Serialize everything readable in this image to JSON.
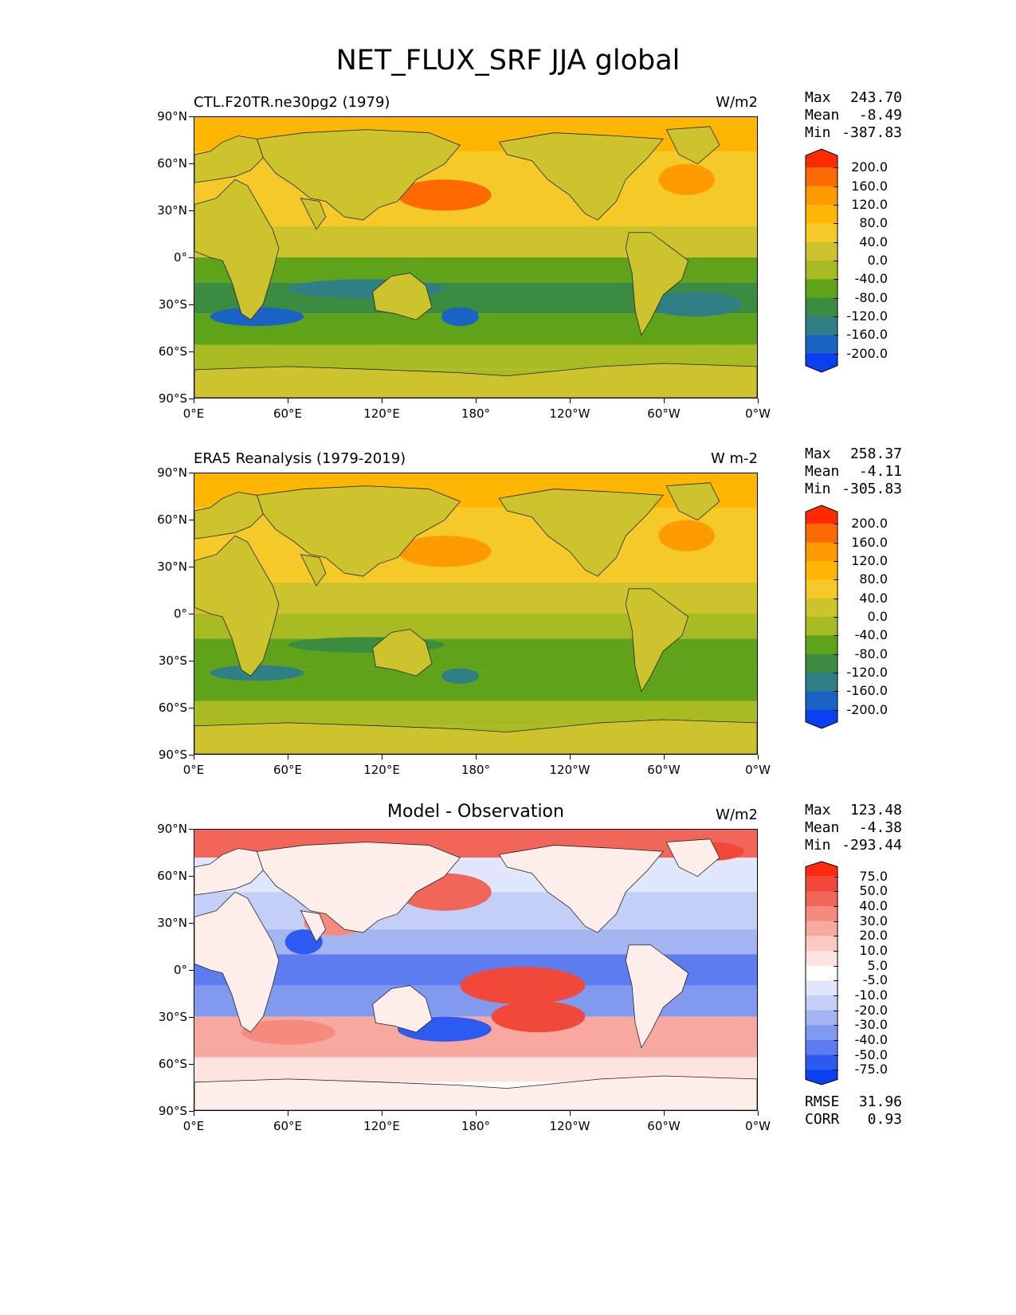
{
  "title": "NET_FLUX_SRF JJA global",
  "y_ticks": [
    "90°N",
    "60°N",
    "30°N",
    "0°",
    "30°S",
    "60°S",
    "90°S"
  ],
  "x_ticks": [
    "0°E",
    "60°E",
    "120°E",
    "180°",
    "120°W",
    "60°W",
    "0°W"
  ],
  "panels": [
    {
      "left_title": "CTL.F20TR.ne30pg2 (1979)",
      "center_title": "",
      "units": "W/m2",
      "stats": {
        "max_label": "Max",
        "max": "243.70",
        "mean_label": "Mean",
        "mean": "-8.49",
        "min_label": "Min",
        "min": "-387.83"
      },
      "colorbar": {
        "labels": [
          "200.0",
          "160.0",
          "120.0",
          "80.0",
          "40.0",
          "0.0",
          "-40.0",
          "-80.0",
          "-120.0",
          "-160.0",
          "-200.0"
        ],
        "colors": [
          "#ff2a00",
          "#ff6a00",
          "#ff9a00",
          "#ffb600",
          "#f5ca28",
          "#cdc32c",
          "#a8bb23",
          "#5fa31b",
          "#3b8c40",
          "#2f7f85",
          "#1863c4",
          "#0a3ff2"
        ]
      }
    },
    {
      "left_title": "ERA5 Reanalysis (1979-2019)",
      "center_title": "",
      "units": "W m-2",
      "stats": {
        "max_label": "Max",
        "max": "258.37",
        "mean_label": "Mean",
        "mean": "-4.11",
        "min_label": "Min",
        "min": "-305.83"
      },
      "colorbar": {
        "labels": [
          "200.0",
          "160.0",
          "120.0",
          "80.0",
          "40.0",
          "0.0",
          "-40.0",
          "-80.0",
          "-120.0",
          "-160.0",
          "-200.0"
        ],
        "colors": [
          "#ff2a00",
          "#ff6a00",
          "#ff9a00",
          "#ffb600",
          "#f5ca28",
          "#cdc32c",
          "#a8bb23",
          "#5fa31b",
          "#3b8c40",
          "#2f7f85",
          "#1863c4",
          "#0a3ff2"
        ]
      }
    },
    {
      "left_title": "",
      "center_title": "Model - Observation",
      "units": "W/m2",
      "stats": {
        "max_label": "Max",
        "max": "123.48",
        "mean_label": "Mean",
        "mean": "-4.38",
        "min_label": "Min",
        "min": "-293.44"
      },
      "colorbar": {
        "labels": [
          "75.0",
          "50.0",
          "40.0",
          "30.0",
          "20.0",
          "10.0",
          "5.0",
          "-5.0",
          "-10.0",
          "-20.0",
          "-30.0",
          "-40.0",
          "-50.0",
          "-75.0"
        ],
        "colors": [
          "#ff2a10",
          "#f2483a",
          "#f2665a",
          "#f58a7e",
          "#f8a99f",
          "#fbc8c2",
          "#fde4e0",
          "#ffffff",
          "#e0e6fb",
          "#c3cff6",
          "#a4b6f2",
          "#8199ee",
          "#5c7cef",
          "#2d5bf2",
          "#0a3ff2"
        ]
      },
      "rmse_label": "RMSE",
      "rmse": "31.96",
      "corr_label": "CORR",
      "corr": "0.93"
    }
  ],
  "chart_data": [
    {
      "type": "heatmap",
      "title": "CTL.F20TR.ne30pg2 (1979)",
      "units": "W/m2",
      "x_range": [
        "0°E",
        "0°W"
      ],
      "y_range": [
        "90°S",
        "90°N"
      ],
      "levels": [
        -200,
        -160,
        -120,
        -80,
        -40,
        0,
        40,
        80,
        120,
        160,
        200
      ],
      "max": 243.7,
      "mean": -8.49,
      "min": -387.83
    },
    {
      "type": "heatmap",
      "title": "ERA5 Reanalysis (1979-2019)",
      "units": "W m-2",
      "x_range": [
        "0°E",
        "0°W"
      ],
      "y_range": [
        "90°S",
        "90°N"
      ],
      "levels": [
        -200,
        -160,
        -120,
        -80,
        -40,
        0,
        40,
        80,
        120,
        160,
        200
      ],
      "max": 258.37,
      "mean": -4.11,
      "min": -305.83
    },
    {
      "type": "heatmap",
      "title": "Model - Observation",
      "units": "W/m2",
      "x_range": [
        "0°E",
        "0°W"
      ],
      "y_range": [
        "90°S",
        "90°N"
      ],
      "levels": [
        -75,
        -50,
        -40,
        -30,
        -20,
        -10,
        -5,
        5,
        10,
        20,
        30,
        40,
        50,
        75
      ],
      "max": 123.48,
      "mean": -4.38,
      "min": -293.44,
      "rmse": 31.96,
      "corr": 0.93
    }
  ]
}
